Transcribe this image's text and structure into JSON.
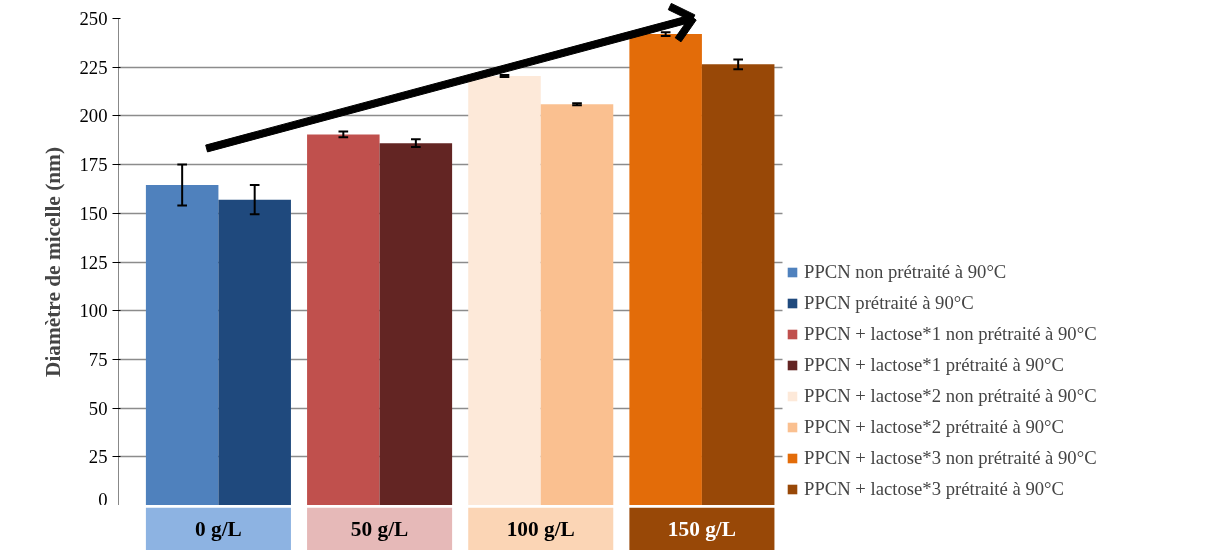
{
  "chart_data": {
    "type": "bar",
    "ylabel": "Diamètre de micelle (nm)",
    "categories": [
      "0 g/L",
      "50 g/L",
      "100 g/L",
      "150 g/L"
    ],
    "series": [
      {
        "name": "PPCN non prétraité à 90°C",
        "color": "#4f81bd",
        "values": [
          164.5,
          null,
          null,
          null
        ],
        "errors": [
          10.5,
          null,
          null,
          null
        ]
      },
      {
        "name": "PPCN prétraité à 90°C",
        "color": "#1f497d",
        "values": [
          157,
          null,
          null,
          null
        ],
        "errors": [
          7.5,
          null,
          null,
          null
        ]
      },
      {
        "name": "PPCN + lactose*1 non prétraité à 90°C",
        "color": "#c0504d",
        "values": [
          null,
          190.5,
          null,
          null
        ],
        "errors": [
          null,
          1.5,
          null,
          null
        ]
      },
      {
        "name": "PPCN + lactose*1 prétraité à 90°C",
        "color": "#632523",
        "values": [
          null,
          186,
          null,
          null
        ],
        "errors": [
          null,
          2,
          null,
          null
        ]
      },
      {
        "name": "PPCN + lactose*2 non prétraité à 90°C",
        "color": "#fde9d9",
        "values": [
          null,
          null,
          220.5,
          null
        ],
        "errors": [
          null,
          null,
          0.5,
          null
        ]
      },
      {
        "name": "PPCN + lactose*2 prétraité à 90°C",
        "color": "#fac090",
        "values": [
          null,
          null,
          206,
          null
        ],
        "errors": [
          null,
          null,
          0.5,
          null
        ]
      },
      {
        "name": "PPCN + lactose*3 non prétraité à 90°C",
        "color": "#e36c09",
        "values": [
          null,
          null,
          null,
          242
        ],
        "errors": [
          null,
          null,
          null,
          1
        ]
      },
      {
        "name": "PPCN + lactose*3 prétraité à 90°C",
        "color": "#984807",
        "values": [
          null,
          null,
          null,
          226.5
        ],
        "errors": [
          null,
          null,
          null,
          2.5
        ]
      }
    ],
    "ylim": [
      0,
      250
    ],
    "yticks": [
      0,
      25,
      50,
      75,
      100,
      125,
      150,
      175,
      200,
      225,
      250
    ],
    "grid": "y",
    "legend": "right"
  }
}
